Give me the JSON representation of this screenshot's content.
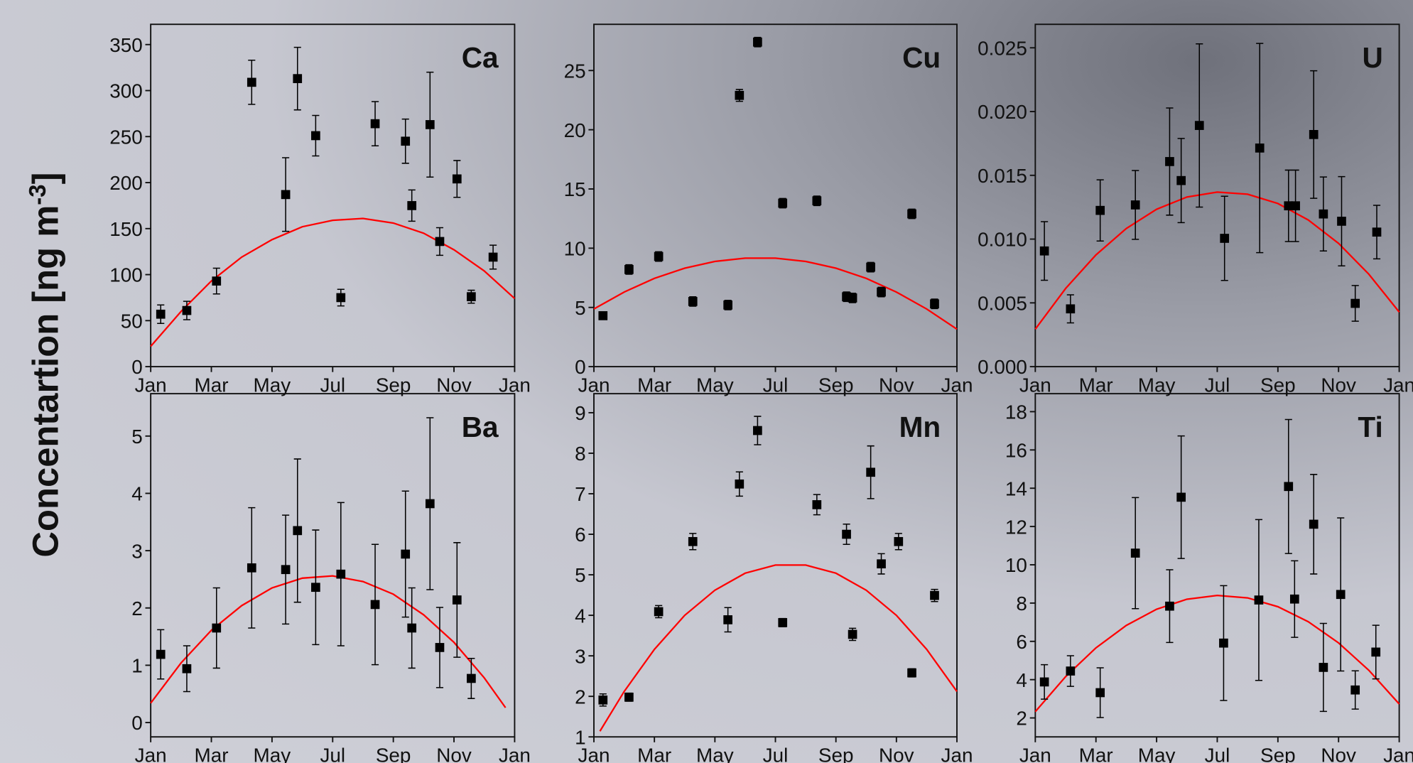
{
  "ylabel_parts": [
    "Concentartion [ng m",
    "-3",
    "]"
  ],
  "chart_data": [
    {
      "type": "scatter",
      "label": "Ca",
      "color": "#000000",
      "fit_color": "#ff0000",
      "xlim": [
        0,
        12
      ],
      "xticks": [
        {
          "value": 0,
          "label": "Jan"
        },
        {
          "value": 2,
          "label": "Mar"
        },
        {
          "value": 4,
          "label": "May"
        },
        {
          "value": 6,
          "label": "Jul"
        },
        {
          "value": 8,
          "label": "Sep"
        },
        {
          "value": 10,
          "label": "Nov"
        },
        {
          "value": 12,
          "label": "Jan"
        }
      ],
      "ylim": [
        0,
        372
      ],
      "yticks": [
        0,
        50,
        100,
        150,
        200,
        250,
        300,
        350
      ],
      "x": [
        0.33,
        1.19,
        2.17,
        3.33,
        4.45,
        4.84,
        5.44,
        6.27,
        7.4,
        8.4,
        8.61,
        9.21,
        9.53,
        10.1,
        10.57,
        11.29
      ],
      "values": [
        57,
        61,
        93,
        309,
        187,
        313,
        251,
        75,
        264,
        245,
        175,
        263,
        136,
        204,
        76,
        119
      ],
      "errors": [
        10,
        10,
        14,
        24,
        40,
        34,
        22,
        9,
        24,
        24,
        17,
        57,
        15,
        20,
        7,
        13
      ],
      "fit_x": [
        0,
        1,
        2,
        3,
        4,
        5,
        6,
        7,
        8,
        9,
        10,
        11,
        12
      ],
      "fit_values": [
        22,
        60,
        93,
        119,
        138,
        152,
        159,
        161,
        156,
        145,
        127,
        104,
        74
      ]
    },
    {
      "type": "scatter",
      "label": "Cu",
      "color": "#000000",
      "fit_color": "#ff0000",
      "xlim": [
        0,
        12
      ],
      "xticks": [
        {
          "value": 0,
          "label": "Jan"
        },
        {
          "value": 2,
          "label": "Mar"
        },
        {
          "value": 4,
          "label": "May"
        },
        {
          "value": 6,
          "label": "Jul"
        },
        {
          "value": 8,
          "label": "Sep"
        },
        {
          "value": 10,
          "label": "Nov"
        },
        {
          "value": 12,
          "label": "Jan"
        }
      ],
      "ylim": [
        0,
        28.9
      ],
      "yticks": [
        0,
        5,
        10,
        15,
        20,
        25
      ],
      "x": [
        0.3,
        1.16,
        2.14,
        3.27,
        4.43,
        4.81,
        5.41,
        6.24,
        7.37,
        8.35,
        8.55,
        9.15,
        9.5,
        10.51,
        11.26
      ],
      "values": [
        4.3,
        8.2,
        9.3,
        5.5,
        5.2,
        22.9,
        27.4,
        13.8,
        14.0,
        5.9,
        5.8,
        8.4,
        6.3,
        12.9,
        5.3
      ],
      "errors": [
        0.3,
        0.4,
        0.4,
        0.4,
        0.4,
        0.5,
        0.4,
        0.4,
        0.4,
        0.4,
        0.4,
        0.4,
        0.4,
        0.4,
        0.4
      ],
      "fit_x": [
        0,
        1,
        2,
        3,
        4,
        5,
        6,
        7,
        8,
        9,
        10,
        11,
        12
      ],
      "fit_values": [
        4.87,
        6.3,
        7.45,
        8.31,
        8.88,
        9.16,
        9.16,
        8.88,
        8.31,
        7.45,
        6.3,
        4.87,
        3.16
      ]
    },
    {
      "type": "scatter",
      "label": "U",
      "color": "#000000",
      "fit_color": "#ff0000",
      "xlim": [
        0,
        12
      ],
      "xticks": [
        {
          "value": 0,
          "label": "Jan"
        },
        {
          "value": 2,
          "label": "Mar"
        },
        {
          "value": 4,
          "label": "May"
        },
        {
          "value": 6,
          "label": "Jul"
        },
        {
          "value": 8,
          "label": "Sep"
        },
        {
          "value": 10,
          "label": "Nov"
        },
        {
          "value": 12,
          "label": "Jan"
        }
      ],
      "ylim": [
        0,
        0.02684
      ],
      "yticks": [
        {
          "value": 0,
          "label": "0.000"
        },
        {
          "value": 0.005,
          "label": "0.005"
        },
        {
          "value": 0.01,
          "label": "0.010"
        },
        {
          "value": 0.015,
          "label": "0.015"
        },
        {
          "value": 0.02,
          "label": "0.020"
        },
        {
          "value": 0.025,
          "label": "0.025"
        }
      ],
      "x": [
        0.3,
        1.16,
        2.14,
        3.3,
        4.43,
        4.81,
        5.41,
        6.24,
        7.4,
        8.35,
        8.58,
        9.18,
        9.5,
        10.1,
        10.55,
        11.26
      ],
      "values": [
        0.00907,
        0.00453,
        0.01225,
        0.01268,
        0.01608,
        0.01459,
        0.01891,
        0.01006,
        0.01714,
        0.01261,
        0.01261,
        0.0182,
        0.01197,
        0.0114,
        0.00496,
        0.01055
      ],
      "errors": [
        0.0023,
        0.0011,
        0.0024,
        0.0027,
        0.0042,
        0.0033,
        0.0064,
        0.0033,
        0.0082,
        0.0028,
        0.0028,
        0.005,
        0.0029,
        0.0035,
        0.0014,
        0.0021
      ],
      "fit_x": [
        0,
        1,
        2,
        3,
        4,
        5,
        6,
        7,
        8,
        9,
        10,
        11,
        12
      ],
      "fit_values": [
        0.00294,
        0.00613,
        0.00876,
        0.01083,
        0.01234,
        0.0133,
        0.01369,
        0.01352,
        0.01279,
        0.0115,
        0.00966,
        0.00725,
        0.00428
      ]
    },
    {
      "type": "scatter",
      "label": "Ba",
      "color": "#000000",
      "fit_color": "#ff0000",
      "xlim": [
        0,
        12
      ],
      "xticks": [
        {
          "value": 0,
          "label": "Jan"
        },
        {
          "value": 2,
          "label": "Mar"
        },
        {
          "value": 4,
          "label": "May"
        },
        {
          "value": 6,
          "label": "Jul"
        },
        {
          "value": 8,
          "label": "Sep"
        },
        {
          "value": 10,
          "label": "Nov"
        },
        {
          "value": 12,
          "label": "Jan"
        }
      ],
      "ylim": [
        -0.25,
        5.74
      ],
      "yticks": [
        0,
        1,
        2,
        3,
        4,
        5
      ],
      "x": [
        0.33,
        1.19,
        2.17,
        3.33,
        4.45,
        4.84,
        5.44,
        6.27,
        7.4,
        8.4,
        8.61,
        9.21,
        9.53,
        10.1,
        10.57
      ],
      "values": [
        1.19,
        0.94,
        1.65,
        2.7,
        2.67,
        3.35,
        2.36,
        2.59,
        2.06,
        2.94,
        1.65,
        3.82,
        1.31,
        2.14,
        0.77
      ],
      "errors": [
        0.43,
        0.4,
        0.7,
        1.05,
        0.95,
        1.25,
        1.0,
        1.25,
        1.05,
        1.1,
        0.7,
        1.5,
        0.7,
        1.0,
        0.35
      ],
      "fit_x": [
        0,
        1,
        2,
        3,
        4,
        5,
        6,
        7,
        8,
        9,
        10,
        11,
        11.7
      ],
      "fit_values": [
        0.34,
        1.04,
        1.61,
        2.04,
        2.35,
        2.52,
        2.56,
        2.46,
        2.24,
        1.88,
        1.4,
        0.78,
        0.26
      ]
    },
    {
      "type": "scatter",
      "label": "Mn",
      "color": "#000000",
      "fit_color": "#ff0000",
      "xlim": [
        0,
        12
      ],
      "xticks": [
        {
          "value": 0,
          "label": "Jan"
        },
        {
          "value": 2,
          "label": "Mar"
        },
        {
          "value": 4,
          "label": "May"
        },
        {
          "value": 6,
          "label": "Jul"
        },
        {
          "value": 8,
          "label": "Sep"
        },
        {
          "value": 10,
          "label": "Nov"
        },
        {
          "value": 12,
          "label": "Jan"
        }
      ],
      "ylim": [
        1,
        9.47
      ],
      "yticks": [
        1,
        2,
        3,
        4,
        5,
        6,
        7,
        8,
        9
      ],
      "x": [
        0.3,
        1.16,
        2.14,
        3.27,
        4.43,
        4.81,
        5.41,
        6.24,
        7.37,
        8.35,
        8.55,
        9.15,
        9.5,
        10.07,
        10.51,
        11.26
      ],
      "values": [
        1.91,
        1.98,
        4.09,
        5.82,
        3.89,
        7.24,
        8.56,
        3.82,
        6.73,
        6.0,
        3.53,
        7.53,
        5.27,
        5.82,
        2.58,
        4.49
      ],
      "errors": [
        0.15,
        0.1,
        0.15,
        0.2,
        0.3,
        0.3,
        0.35,
        0.1,
        0.25,
        0.25,
        0.15,
        0.65,
        0.25,
        0.2,
        0.1,
        0.15
      ],
      "fit_x": [
        0.2,
        1,
        2,
        3,
        4,
        5,
        6,
        7,
        8,
        9,
        10,
        11,
        12
      ],
      "fit_values": [
        1.14,
        2.12,
        3.16,
        4.0,
        4.62,
        5.04,
        5.24,
        5.24,
        5.04,
        4.62,
        4.0,
        3.16,
        2.12
      ]
    },
    {
      "type": "scatter",
      "label": "Ti",
      "color": "#000000",
      "fit_color": "#ff0000",
      "xlim": [
        0,
        12
      ],
      "xticks": [
        {
          "value": 0,
          "label": "Jan"
        },
        {
          "value": 2,
          "label": "Mar"
        },
        {
          "value": 4,
          "label": "May"
        },
        {
          "value": 6,
          "label": "Jul"
        },
        {
          "value": 8,
          "label": "Sep"
        },
        {
          "value": 10,
          "label": "Nov"
        },
        {
          "value": 12,
          "label": "Jan"
        }
      ],
      "ylim": [
        1.01,
        18.94
      ],
      "yticks": [
        2,
        4,
        6,
        8,
        10,
        12,
        14,
        16,
        18
      ],
      "x": [
        0.3,
        1.16,
        2.14,
        3.3,
        4.43,
        4.81,
        6.21,
        7.37,
        8.35,
        8.55,
        9.18,
        9.5,
        10.07,
        10.55,
        11.23
      ],
      "values": [
        3.88,
        4.45,
        3.32,
        10.61,
        7.84,
        13.53,
        5.91,
        8.16,
        14.09,
        8.21,
        12.12,
        4.64,
        8.45,
        3.46,
        5.44
      ],
      "errors": [
        0.9,
        0.8,
        1.3,
        2.9,
        1.9,
        3.2,
        3.0,
        4.2,
        3.5,
        2.0,
        2.6,
        2.3,
        4.0,
        1.0,
        1.4
      ],
      "fit_x": [
        0,
        1,
        2,
        3,
        4,
        5,
        6,
        7,
        8,
        9,
        10,
        11,
        12
      ],
      "fit_values": [
        2.33,
        4.16,
        5.66,
        6.83,
        7.68,
        8.2,
        8.4,
        8.27,
        7.81,
        7.03,
        5.92,
        4.49,
        2.73
      ]
    }
  ]
}
